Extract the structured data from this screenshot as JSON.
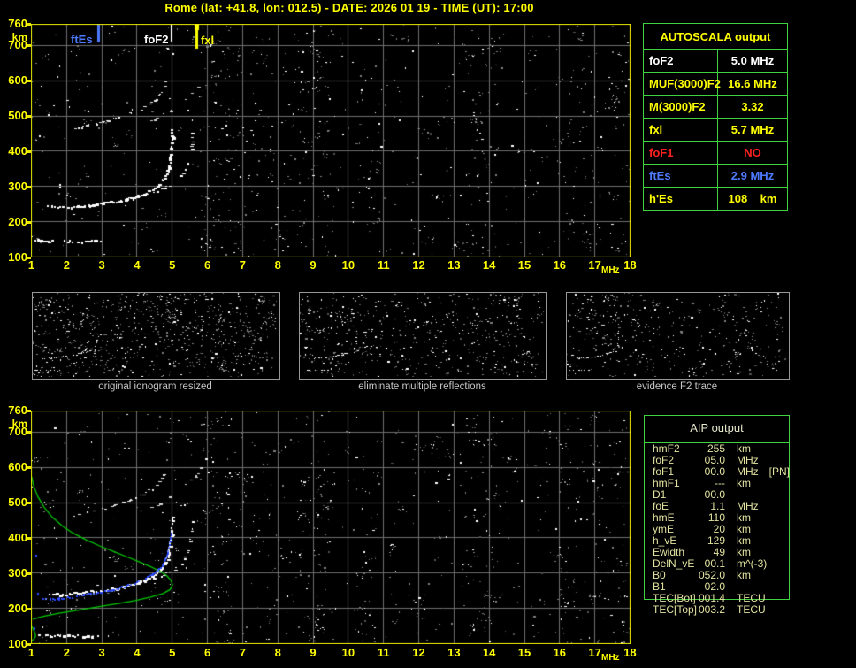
{
  "title": "Rome (lat: +41.8, lon: 012.5) - DATE: 2026 01 19 - TIME (UT): 17:00",
  "colors": {
    "background": "#000000",
    "accent_yellow": "#ffff00",
    "chart_border": "#e8e800",
    "grid": "#6f6f6f",
    "noise_gray": "#7d7d7d",
    "white": "#ffffff",
    "blue": "#4d79ff",
    "blue_trace": "#2747ff",
    "red": "#ff2020",
    "green_box": "#3fd43f",
    "profile_green": "#00c800",
    "panel_border": "#979797",
    "caption_gray": "#c6c6c6",
    "aip_text": "#e2e2a0"
  },
  "axes": {
    "x_unit": "MHz",
    "y_unit": "km",
    "x_ticks": [
      1,
      2,
      3,
      4,
      5,
      6,
      7,
      8,
      9,
      10,
      11,
      12,
      13,
      14,
      15,
      16,
      17,
      18
    ],
    "y_ticks": [
      760,
      700,
      600,
      500,
      400,
      300,
      200,
      100
    ],
    "x_range": [
      1,
      18
    ],
    "y_range": [
      100,
      760
    ]
  },
  "chart_data": [
    {
      "type": "scatter",
      "name": "scaled ionogram with AUTOSCALA markers",
      "xlabel": "MHz",
      "ylabel": "km",
      "xlim": [
        1,
        18
      ],
      "ylim": [
        100,
        760
      ],
      "grid": true,
      "seed": 101,
      "noise": {
        "base": 520,
        "bands": [
          [
            5.8,
            6.7,
            70
          ],
          [
            6.8,
            8.5,
            40
          ],
          [
            8.6,
            9.5,
            55
          ],
          [
            10.3,
            10.9,
            25
          ],
          [
            13.3,
            14.3,
            50
          ],
          [
            16.0,
            17.2,
            55
          ],
          [
            17.4,
            18.0,
            30
          ]
        ]
      },
      "traces": [
        {
          "name": "F2-ordinary",
          "color": "#ffffff",
          "w": 3,
          "p": 0.92,
          "pts": [
            [
              1.5,
              243
            ],
            [
              1.9,
              240
            ],
            [
              2.3,
              242
            ],
            [
              2.7,
              246
            ],
            [
              3.1,
              251
            ],
            [
              3.5,
              258
            ],
            [
              3.9,
              267
            ],
            [
              4.2,
              277
            ],
            [
              4.45,
              290
            ],
            [
              4.65,
              305
            ],
            [
              4.78,
              322
            ],
            [
              4.88,
              345
            ],
            [
              4.94,
              375
            ],
            [
              4.98,
              405
            ],
            [
              5.0,
              438
            ],
            [
              5.0,
              458
            ]
          ]
        },
        {
          "name": "F2-extraordinary",
          "color": "#ffffff",
          "w": 2,
          "p": 0.5,
          "pts": [
            [
              3.7,
              263
            ],
            [
              4.0,
              269
            ],
            [
              4.35,
              278
            ],
            [
              4.7,
              290
            ],
            [
              5.0,
              304
            ],
            [
              5.2,
              320
            ],
            [
              5.35,
              338
            ],
            [
              5.45,
              360
            ],
            [
              5.52,
              388
            ],
            [
              5.56,
              418
            ],
            [
              5.58,
              448
            ]
          ]
        },
        {
          "name": "second-hop-o",
          "color": "#e8e8e8",
          "w": 2,
          "p": 0.5,
          "pts": [
            [
              2.25,
              463
            ],
            [
              2.6,
              471
            ],
            [
              3.0,
              481
            ],
            [
              3.4,
              492
            ],
            [
              3.8,
              505
            ],
            [
              4.1,
              518
            ],
            [
              4.35,
              532
            ],
            [
              4.55,
              549
            ],
            [
              4.7,
              567
            ],
            [
              4.8,
              586
            ],
            [
              4.86,
              601
            ]
          ]
        },
        {
          "name": "second-hop-x",
          "color": "#d0d0d0",
          "w": 2,
          "p": 0.3,
          "pts": [
            [
              4.35,
              481
            ],
            [
              4.7,
              499
            ],
            [
              5.0,
              517
            ],
            [
              5.3,
              538
            ],
            [
              5.55,
              561
            ],
            [
              5.72,
              583
            ],
            [
              5.83,
              601
            ]
          ]
        },
        {
          "name": "Es-layer",
          "color": "#ffffff",
          "w": 3,
          "p": 0.75,
          "pts": [
            [
              1.12,
              147
            ],
            [
              1.6,
              145
            ],
            [
              2.1,
              144
            ],
            [
              2.6,
              144
            ],
            [
              2.95,
              145
            ]
          ]
        }
      ],
      "markers": [
        {
          "label": "ftEs",
          "freq": 2.9,
          "color": "#4d79ff",
          "len": 21,
          "w": 3,
          "tip": false
        },
        {
          "label": "foF2",
          "freq": 5.0,
          "color": "#ffffff",
          "len": 20,
          "w": 2,
          "tip": false
        },
        {
          "label": "fxl",
          "freq": 5.7,
          "color": "#ffff00",
          "len": 28,
          "w": 3,
          "tip": true
        }
      ]
    },
    {
      "type": "scatter",
      "name": "ionogram with restored trace and electron density profile",
      "xlabel": "MHz",
      "ylabel": "km",
      "xlim": [
        1,
        18
      ],
      "ylim": [
        100,
        760
      ],
      "grid": true,
      "seed": 202,
      "noise": {
        "base": 520,
        "bands": [
          [
            5.8,
            6.7,
            60
          ],
          [
            6.8,
            8.5,
            40
          ],
          [
            8.6,
            9.5,
            55
          ],
          [
            10.3,
            10.9,
            25
          ],
          [
            13.3,
            14.3,
            50
          ],
          [
            16.0,
            17.2,
            55
          ],
          [
            17.4,
            18.0,
            30
          ]
        ]
      },
      "traces": [
        {
          "name": "F2-ordinary",
          "color": "#ffffff",
          "w": 3,
          "p": 0.92,
          "pts": [
            [
              1.5,
              243
            ],
            [
              1.9,
              240
            ],
            [
              2.3,
              242
            ],
            [
              2.7,
              246
            ],
            [
              3.1,
              251
            ],
            [
              3.5,
              258
            ],
            [
              3.9,
              267
            ],
            [
              4.2,
              277
            ],
            [
              4.45,
              290
            ],
            [
              4.65,
              305
            ],
            [
              4.78,
              322
            ],
            [
              4.88,
              345
            ],
            [
              4.94,
              375
            ],
            [
              4.98,
              405
            ],
            [
              5.0,
              438
            ],
            [
              5.0,
              458
            ]
          ]
        },
        {
          "name": "F2-extraordinary",
          "color": "#ffffff",
          "w": 2,
          "p": 0.5,
          "pts": [
            [
              3.7,
              263
            ],
            [
              4.0,
              269
            ],
            [
              4.35,
              278
            ],
            [
              4.7,
              290
            ],
            [
              5.0,
              304
            ],
            [
              5.2,
              320
            ],
            [
              5.35,
              338
            ],
            [
              5.45,
              360
            ],
            [
              5.52,
              388
            ],
            [
              5.56,
              418
            ],
            [
              5.58,
              448
            ]
          ]
        },
        {
          "name": "second-hop-o",
          "color": "#e8e8e8",
          "w": 2,
          "p": 0.5,
          "pts": [
            [
              2.25,
              463
            ],
            [
              2.6,
              471
            ],
            [
              3.0,
              481
            ],
            [
              3.4,
              492
            ],
            [
              3.8,
              505
            ],
            [
              4.1,
              518
            ],
            [
              4.35,
              532
            ],
            [
              4.55,
              549
            ],
            [
              4.7,
              567
            ],
            [
              4.8,
              586
            ],
            [
              4.86,
              601
            ]
          ]
        },
        {
          "name": "second-hop-x",
          "color": "#d0d0d0",
          "w": 2,
          "p": 0.3,
          "pts": [
            [
              4.35,
              481
            ],
            [
              4.7,
              499
            ],
            [
              5.0,
              517
            ],
            [
              5.3,
              538
            ],
            [
              5.55,
              561
            ],
            [
              5.72,
              583
            ],
            [
              5.83,
              601
            ]
          ]
        },
        {
          "name": "Es-layer",
          "color": "#ffffff",
          "w": 3,
          "p": 0.75,
          "pts": [
            [
              1.12,
              124
            ],
            [
              1.6,
              122
            ],
            [
              2.1,
              121
            ],
            [
              2.6,
              121
            ],
            [
              2.95,
              122
            ]
          ]
        }
      ],
      "profile": {
        "name": "plasma-frequency-profile",
        "color": "#00c800",
        "pts": [
          [
            1.02,
            572
          ],
          [
            1.08,
            545
          ],
          [
            1.2,
            515
          ],
          [
            1.38,
            485
          ],
          [
            1.6,
            458
          ],
          [
            1.9,
            432
          ],
          [
            2.2,
            412
          ],
          [
            2.55,
            394
          ],
          [
            2.95,
            376
          ],
          [
            3.35,
            360
          ],
          [
            3.75,
            344
          ],
          [
            4.1,
            330
          ],
          [
            4.4,
            317
          ],
          [
            4.65,
            305
          ],
          [
            4.85,
            292
          ],
          [
            4.98,
            278
          ],
          [
            5.02,
            265
          ],
          [
            4.95,
            252
          ],
          [
            4.75,
            241
          ],
          [
            4.4,
            231
          ],
          [
            3.95,
            221
          ],
          [
            3.45,
            212
          ],
          [
            2.9,
            203
          ],
          [
            2.35,
            194
          ],
          [
            1.8,
            185
          ],
          [
            1.35,
            176
          ],
          [
            1.05,
            168
          ]
        ]
      },
      "profile_e": {
        "name": "E-layer-profile",
        "color": "#00c800",
        "pts": [
          [
            1.0,
            152
          ],
          [
            1.06,
            140
          ],
          [
            1.12,
            128
          ],
          [
            1.13,
            119
          ],
          [
            1.08,
            111
          ],
          [
            1.01,
            106
          ]
        ]
      },
      "blue_trace": {
        "name": "restored-trace",
        "color": "#2747ff",
        "pts": [
          [
            1.35,
            228
          ],
          [
            1.55,
            224
          ],
          [
            1.8,
            226
          ],
          [
            2.1,
            230
          ],
          [
            2.5,
            237
          ],
          [
            2.9,
            244
          ],
          [
            3.3,
            252
          ],
          [
            3.7,
            263
          ],
          [
            4.0,
            273
          ],
          [
            4.25,
            284
          ],
          [
            4.45,
            296
          ],
          [
            4.6,
            308
          ],
          [
            4.72,
            322
          ],
          [
            4.8,
            338
          ],
          [
            4.87,
            356
          ],
          [
            4.92,
            377
          ],
          [
            4.96,
            398
          ],
          [
            4.98,
            412
          ]
        ]
      },
      "blue_dots": [
        [
          1.15,
          350
        ],
        [
          1.2,
          243
        ],
        [
          1.1,
          143
        ],
        [
          4.98,
          410
        ]
      ]
    }
  ],
  "panels": [
    {
      "caption": "original ionogram resized",
      "seed": 311,
      "noise_base": 640
    },
    {
      "caption": "eliminate multiple reflections",
      "seed": 312,
      "noise_base": 430
    },
    {
      "caption": "evidence F2 trace",
      "seed": 313,
      "noise_base": 330
    }
  ],
  "autoscala": {
    "header": "AUTOSCALA output",
    "rows": [
      {
        "label": "foF2",
        "value": "5.0",
        "unit": "MHz",
        "color": "#ffffff"
      },
      {
        "label": "MUF(3000)F2",
        "value": "16.6",
        "unit": "MHz",
        "color": "#ffff00"
      },
      {
        "label": "M(3000)F2",
        "value": "3.32",
        "unit": "",
        "color": "#ffff00"
      },
      {
        "label": "fxl",
        "value": "5.7",
        "unit": "MHz",
        "color": "#ffff00"
      },
      {
        "label": "foF1",
        "value": "NO",
        "unit": "",
        "color": "#ff2020"
      },
      {
        "label": "ftEs",
        "value": "2.9",
        "unit": "MHz",
        "color": "#4d79ff"
      },
      {
        "label": "h'Es",
        "value": "108",
        "unit": "km",
        "color": "#ffff00"
      }
    ]
  },
  "aip": {
    "header": "AIP output",
    "rows": [
      {
        "label": "hmF2",
        "value": "255",
        "unit": "km",
        "note": ""
      },
      {
        "label": "foF2",
        "value": "05.0",
        "unit": "MHz",
        "note": ""
      },
      {
        "label": "foF1",
        "value": "00.0",
        "unit": "MHz",
        "note": "[PN]"
      },
      {
        "label": "hmF1",
        "value": "---",
        "unit": "km",
        "note": ""
      },
      {
        "label": "D1",
        "value": "00.0",
        "unit": "",
        "note": ""
      },
      {
        "label": "foE",
        "value": "1.1",
        "unit": "MHz",
        "note": ""
      },
      {
        "label": "hmE",
        "value": "110",
        "unit": "km",
        "note": ""
      },
      {
        "label": "ymE",
        "value": "20",
        "unit": "km",
        "note": ""
      },
      {
        "label": "h_vE",
        "value": "129",
        "unit": "km",
        "note": ""
      },
      {
        "label": "Ewidth",
        "value": "49",
        "unit": "km",
        "note": ""
      },
      {
        "label": "DelN_vE",
        "value": "00.1",
        "unit": "m^(-3)",
        "note": ""
      },
      {
        "label": "B0",
        "value": "052.0",
        "unit": "km",
        "note": ""
      },
      {
        "label": "B1",
        "value": "02.0",
        "unit": "",
        "note": ""
      },
      {
        "label": "TEC[Bot]",
        "value": "001.4",
        "unit": "TECU",
        "note": ""
      },
      {
        "label": "TEC[Top]",
        "value": "003.2",
        "unit": "TECU",
        "note": ""
      }
    ]
  }
}
